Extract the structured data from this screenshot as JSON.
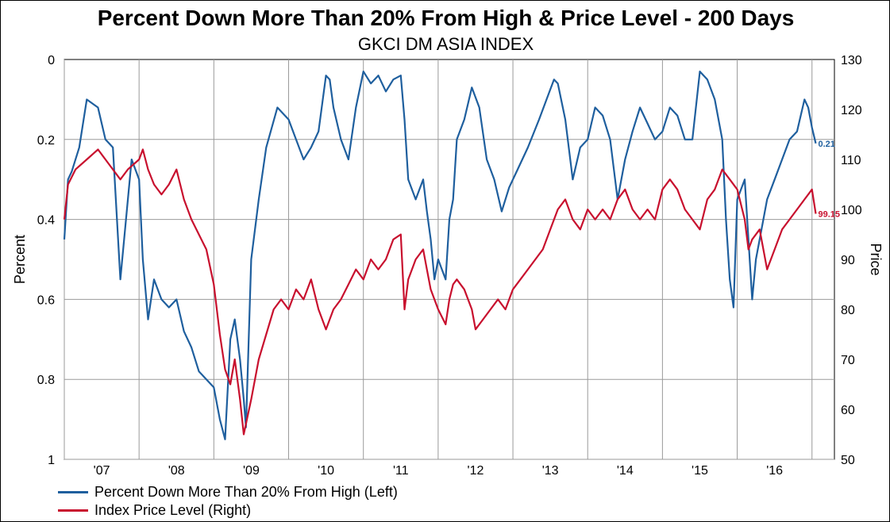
{
  "chart_data": {
    "type": "line",
    "title": "Percent Down More Than 20% From High & Price Level - 200 Days",
    "subtitle": "GKCI DM ASIA INDEX",
    "ylabel_left": "Percent",
    "ylabel_right": "Price",
    "ylim_left": [
      0,
      1
    ],
    "y_left_inverted": true,
    "yticks_left": [
      "0",
      "0.2",
      "0.4",
      "0.6",
      "0.8",
      "1"
    ],
    "ylim_right": [
      50,
      130
    ],
    "yticks_right": [
      "130",
      "120",
      "110",
      "100",
      "90",
      "80",
      "70",
      "60",
      "50"
    ],
    "xlim": [
      2006.5,
      2016.8
    ],
    "xticks": [
      {
        "x": 2007.0,
        "label": "'07"
      },
      {
        "x": 2008.0,
        "label": "'08"
      },
      {
        "x": 2009.0,
        "label": "'09"
      },
      {
        "x": 2010.0,
        "label": "'10"
      },
      {
        "x": 2011.0,
        "label": "'11"
      },
      {
        "x": 2012.0,
        "label": "'12"
      },
      {
        "x": 2013.0,
        "label": "'13"
      },
      {
        "x": 2014.0,
        "label": "'14"
      },
      {
        "x": 2015.0,
        "label": "'15"
      },
      {
        "x": 2016.0,
        "label": "'16"
      }
    ],
    "grid": true,
    "legend_position": "bottom-left",
    "series": [
      {
        "name": "Percent Down More Than 20% From High (Left)",
        "axis": "left",
        "color": "#1f5f9e",
        "end_label": "0.21",
        "x": [
          2006.5,
          2006.55,
          2006.6,
          2006.7,
          2006.8,
          2006.95,
          2007.05,
          2007.15,
          2007.25,
          2007.4,
          2007.5,
          2007.55,
          2007.62,
          2007.7,
          2007.8,
          2007.9,
          2008.0,
          2008.1,
          2008.2,
          2008.3,
          2008.4,
          2008.5,
          2008.58,
          2008.65,
          2008.72,
          2008.78,
          2008.85,
          2008.9,
          2008.93,
          2009.0,
          2009.1,
          2009.2,
          2009.35,
          2009.5,
          2009.6,
          2009.7,
          2009.8,
          2009.9,
          2010.0,
          2010.05,
          2010.1,
          2010.2,
          2010.3,
          2010.4,
          2010.5,
          2010.6,
          2010.7,
          2010.8,
          2010.9,
          2011.0,
          2011.05,
          2011.1,
          2011.2,
          2011.3,
          2011.35,
          2011.4,
          2011.45,
          2011.5,
          2011.6,
          2011.65,
          2011.7,
          2011.75,
          2011.85,
          2011.95,
          2012.05,
          2012.15,
          2012.25,
          2012.35,
          2012.45,
          2012.55,
          2012.7,
          2012.85,
          2012.95,
          2013.05,
          2013.1,
          2013.2,
          2013.3,
          2013.4,
          2013.5,
          2013.6,
          2013.7,
          2013.8,
          2013.9,
          2014.0,
          2014.1,
          2014.2,
          2014.3,
          2014.4,
          2014.5,
          2014.6,
          2014.7,
          2014.8,
          2014.9,
          2015.0,
          2015.1,
          2015.2,
          2015.3,
          2015.35,
          2015.4,
          2015.45,
          2015.5,
          2015.6,
          2015.65,
          2015.7,
          2015.75,
          2015.8,
          2015.9,
          2016.0,
          2016.1,
          2016.2,
          2016.3,
          2016.4,
          2016.45,
          2016.5,
          2016.55
        ],
        "values": [
          0.45,
          0.3,
          0.28,
          0.22,
          0.1,
          0.12,
          0.2,
          0.22,
          0.55,
          0.25,
          0.3,
          0.5,
          0.65,
          0.55,
          0.6,
          0.62,
          0.6,
          0.68,
          0.72,
          0.78,
          0.8,
          0.82,
          0.9,
          0.95,
          0.7,
          0.65,
          0.75,
          0.85,
          0.92,
          0.5,
          0.35,
          0.22,
          0.12,
          0.15,
          0.2,
          0.25,
          0.22,
          0.18,
          0.04,
          0.05,
          0.12,
          0.2,
          0.25,
          0.12,
          0.03,
          0.06,
          0.04,
          0.08,
          0.05,
          0.04,
          0.15,
          0.3,
          0.35,
          0.3,
          0.38,
          0.45,
          0.55,
          0.5,
          0.55,
          0.4,
          0.35,
          0.2,
          0.15,
          0.07,
          0.12,
          0.25,
          0.3,
          0.38,
          0.32,
          0.28,
          0.22,
          0.15,
          0.1,
          0.05,
          0.06,
          0.15,
          0.3,
          0.22,
          0.2,
          0.12,
          0.14,
          0.2,
          0.35,
          0.25,
          0.18,
          0.12,
          0.16,
          0.2,
          0.18,
          0.12,
          0.14,
          0.2,
          0.2,
          0.03,
          0.05,
          0.1,
          0.2,
          0.4,
          0.55,
          0.62,
          0.35,
          0.3,
          0.45,
          0.6,
          0.5,
          0.45,
          0.35,
          0.3,
          0.25,
          0.2,
          0.18,
          0.1,
          0.12,
          0.17,
          0.21
        ]
      },
      {
        "name": "Index Price Level (Right)",
        "axis": "right",
        "color": "#c8102e",
        "end_label": "99.15",
        "x": [
          2006.5,
          2006.55,
          2006.65,
          2006.8,
          2006.95,
          2007.05,
          2007.15,
          2007.25,
          2007.35,
          2007.5,
          2007.55,
          2007.62,
          2007.7,
          2007.8,
          2007.9,
          2008.0,
          2008.1,
          2008.2,
          2008.3,
          2008.4,
          2008.5,
          2008.58,
          2008.65,
          2008.72,
          2008.78,
          2008.85,
          2008.9,
          2009.0,
          2009.1,
          2009.2,
          2009.3,
          2009.4,
          2009.5,
          2009.6,
          2009.7,
          2009.8,
          2009.9,
          2010.0,
          2010.1,
          2010.2,
          2010.3,
          2010.4,
          2010.5,
          2010.6,
          2010.7,
          2010.8,
          2010.9,
          2011.0,
          2011.05,
          2011.1,
          2011.2,
          2011.3,
          2011.35,
          2011.4,
          2011.45,
          2011.5,
          2011.6,
          2011.65,
          2011.7,
          2011.75,
          2011.85,
          2011.95,
          2012.0,
          2012.1,
          2012.2,
          2012.3,
          2012.4,
          2012.5,
          2012.6,
          2012.7,
          2012.8,
          2012.9,
          2013.0,
          2013.1,
          2013.2,
          2013.3,
          2013.4,
          2013.5,
          2013.6,
          2013.7,
          2013.8,
          2013.9,
          2014.0,
          2014.1,
          2014.2,
          2014.3,
          2014.4,
          2014.5,
          2014.6,
          2014.7,
          2014.8,
          2014.9,
          2015.0,
          2015.1,
          2015.2,
          2015.3,
          2015.4,
          2015.5,
          2015.6,
          2015.65,
          2015.7,
          2015.8,
          2015.9,
          2016.0,
          2016.1,
          2016.2,
          2016.3,
          2016.4,
          2016.5,
          2016.55
        ],
        "values": [
          98,
          105,
          108,
          110,
          112,
          110,
          108,
          106,
          108,
          110,
          112,
          108,
          105,
          103,
          105,
          108,
          102,
          98,
          95,
          92,
          85,
          75,
          68,
          65,
          70,
          62,
          55,
          62,
          70,
          75,
          80,
          82,
          80,
          84,
          82,
          86,
          80,
          76,
          80,
          82,
          85,
          88,
          86,
          90,
          88,
          90,
          94,
          95,
          80,
          86,
          90,
          92,
          88,
          84,
          82,
          80,
          77,
          82,
          85,
          86,
          84,
          80,
          76,
          78,
          80,
          82,
          80,
          84,
          86,
          88,
          90,
          92,
          96,
          100,
          102,
          98,
          96,
          100,
          98,
          100,
          98,
          102,
          104,
          100,
          98,
          100,
          98,
          104,
          106,
          104,
          100,
          98,
          96,
          102,
          104,
          108,
          106,
          104,
          98,
          92,
          94,
          96,
          88,
          92,
          96,
          98,
          100,
          102,
          104,
          99.15
        ]
      }
    ]
  }
}
